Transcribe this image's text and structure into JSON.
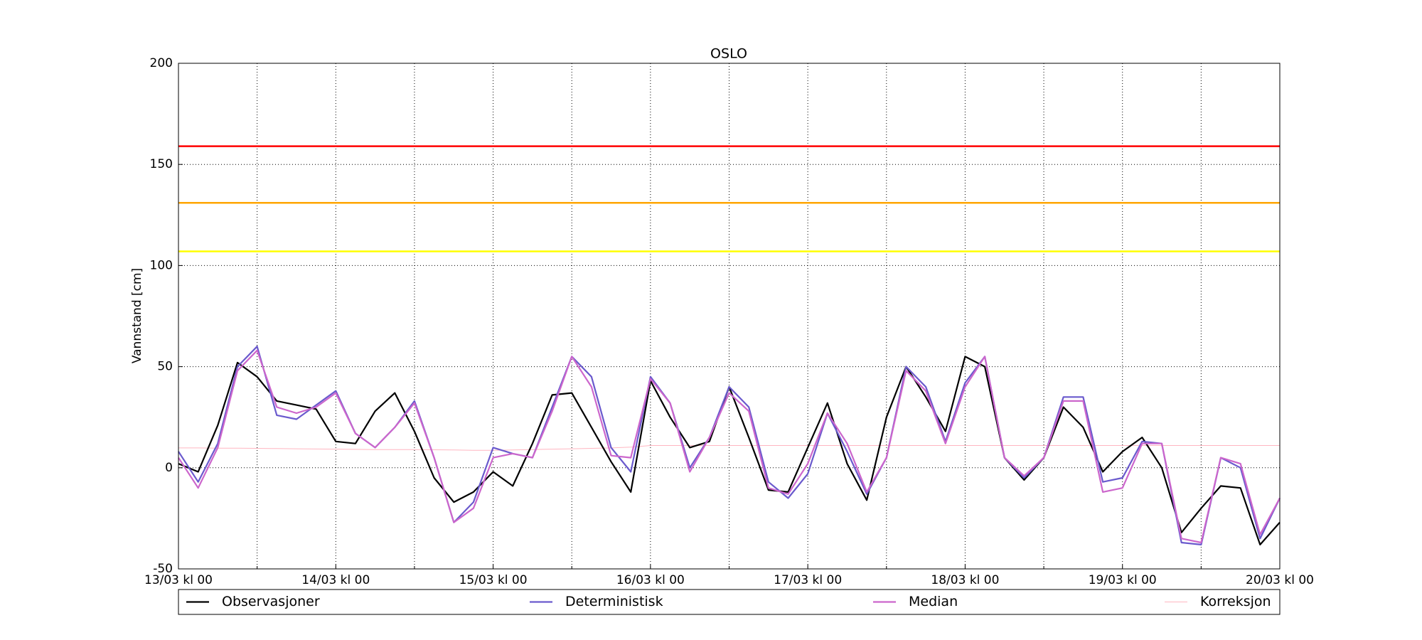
{
  "chart_data": {
    "type": "line",
    "title": "OSLO",
    "y_label": "Vannstand [cm]",
    "x": [
      0,
      3,
      6,
      9,
      12,
      15,
      18,
      21,
      24,
      27,
      30,
      33,
      36,
      39,
      42,
      45,
      48,
      51,
      54,
      57,
      60,
      63,
      66,
      69,
      72,
      75,
      78,
      81,
      84,
      87,
      90,
      93,
      96,
      99,
      102,
      105,
      108,
      111,
      114,
      117,
      120,
      123,
      126,
      129,
      132,
      135,
      138,
      141,
      144,
      147,
      150,
      153,
      156,
      159,
      162,
      165,
      168
    ],
    "xlim": [
      0,
      168
    ],
    "xticks": [
      {
        "value": 0,
        "label": "13/03 kl 00"
      },
      {
        "value": 24,
        "label": "14/03 kl 00"
      },
      {
        "value": 48,
        "label": "15/03 kl 00"
      },
      {
        "value": 72,
        "label": "16/03 kl 00"
      },
      {
        "value": 96,
        "label": "17/03 kl 00"
      },
      {
        "value": 120,
        "label": "18/03 kl 00"
      },
      {
        "value": 144,
        "label": "19/03 kl 00"
      },
      {
        "value": 168,
        "label": "20/03 kl 00"
      }
    ],
    "xminorticks": [
      12,
      36,
      60,
      84,
      108,
      132,
      156
    ],
    "ylim": [
      -50,
      200
    ],
    "yticks": [
      -50,
      0,
      50,
      100,
      150,
      200
    ],
    "grid": true,
    "hlines": [
      {
        "value": 159,
        "color": "#ff0000"
      },
      {
        "value": 131,
        "color": "#ffa500"
      },
      {
        "value": 107,
        "color": "#ffff00"
      }
    ],
    "legend": "bottom",
    "series": [
      {
        "name": "Observasjoner",
        "color": "#000000",
        "values": [
          2,
          -2,
          21,
          52,
          45,
          33,
          31,
          29,
          13,
          12,
          28,
          37,
          18,
          -5,
          -17,
          -12,
          -2,
          -9,
          12,
          36,
          37,
          20,
          3,
          -12,
          43,
          25,
          10,
          13,
          40,
          15,
          -11,
          -12,
          10,
          32,
          2,
          -16,
          25,
          50,
          35,
          18,
          55,
          50,
          5,
          -6,
          5,
          30,
          20,
          -2,
          8,
          15,
          0,
          -32,
          -20,
          -9,
          -10,
          -38,
          -27
        ]
      },
      {
        "name": "Deterministisk",
        "color": "#6a5acd",
        "values": [
          8,
          -7,
          12,
          50,
          60,
          26,
          24,
          31,
          38,
          17,
          10,
          20,
          33,
          5,
          -27,
          -17,
          10,
          7,
          5,
          30,
          55,
          45,
          10,
          -2,
          45,
          32,
          0,
          15,
          40,
          30,
          -7,
          -15,
          -3,
          27,
          8,
          -13,
          5,
          50,
          40,
          13,
          42,
          55,
          5,
          -5,
          5,
          35,
          35,
          -7,
          -5,
          13,
          12,
          -37,
          -38,
          5,
          0,
          -35,
          -15
        ]
      },
      {
        "name": "Median",
        "color": "#cc66cc",
        "values": [
          5,
          -10,
          10,
          48,
          58,
          30,
          27,
          30,
          37,
          17,
          10,
          20,
          32,
          5,
          -27,
          -20,
          5,
          7,
          5,
          28,
          55,
          40,
          6,
          5,
          44,
          32,
          -2,
          15,
          37,
          28,
          -10,
          -13,
          2,
          27,
          12,
          -12,
          5,
          48,
          38,
          12,
          40,
          55,
          5,
          -4,
          5,
          33,
          33,
          -12,
          -10,
          12,
          12,
          -35,
          -37,
          5,
          2,
          -33,
          -15
        ]
      },
      {
        "name": "Korreksjon",
        "color": "#ffb6c1",
        "values": [
          9.8,
          9.8,
          9.7,
          9.7,
          9.6,
          9.5,
          9.4,
          9.3,
          9.2,
          9.1,
          9,
          9,
          9,
          8.9,
          8.8,
          8.6,
          8.6,
          8.8,
          9,
          9.2,
          9.4,
          9.6,
          9.8,
          10.2,
          11,
          11,
          11,
          11,
          11,
          11,
          11,
          11,
          11,
          11,
          11,
          11,
          11,
          11,
          11,
          11,
          11,
          11,
          11,
          11,
          11,
          11,
          11,
          11,
          11,
          11,
          11,
          11,
          11,
          11,
          11,
          11,
          11
        ]
      }
    ]
  }
}
